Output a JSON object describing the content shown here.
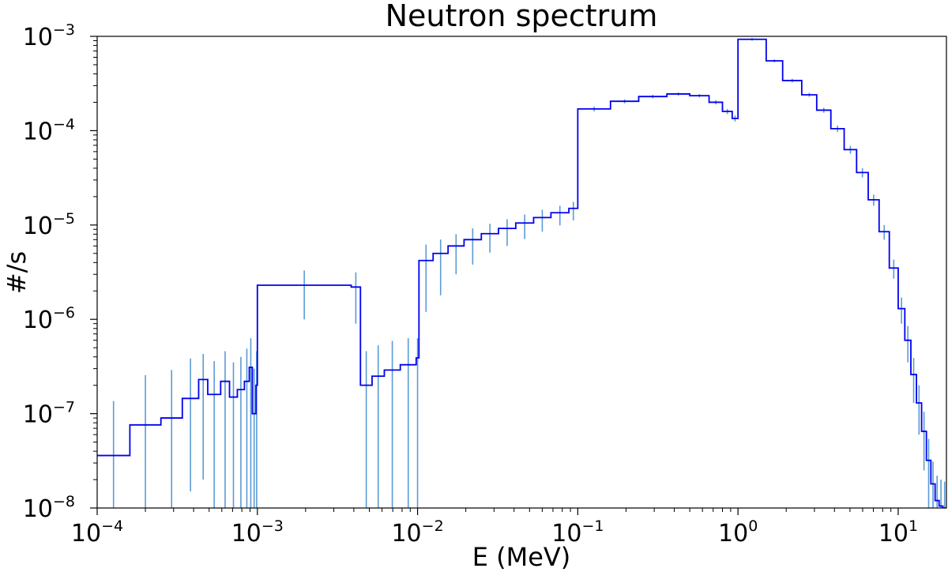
{
  "chart_data": {
    "type": "line",
    "style": "step",
    "title": "Neutron spectrum",
    "xlabel": "E (MeV)",
    "ylabel": "#/s",
    "xscale": "log",
    "yscale": "log",
    "xlim": [
      0.0001,
      20
    ],
    "ylim": [
      1e-08,
      0.001
    ],
    "grid": false,
    "x_ticks": [
      {
        "value": 0.0001,
        "base": "10",
        "exp": "−4"
      },
      {
        "value": 0.001,
        "base": "10",
        "exp": "−3"
      },
      {
        "value": 0.01,
        "base": "10",
        "exp": "−2"
      },
      {
        "value": 0.1,
        "base": "10",
        "exp": "−1"
      },
      {
        "value": 1,
        "base": "10",
        "exp": "0"
      },
      {
        "value": 10,
        "base": "10",
        "exp": "1"
      }
    ],
    "y_ticks": [
      {
        "value": 1e-08,
        "base": "10",
        "exp": "−8"
      },
      {
        "value": 1e-07,
        "base": "10",
        "exp": "−7"
      },
      {
        "value": 1e-06,
        "base": "10",
        "exp": "−6"
      },
      {
        "value": 1e-05,
        "base": "10",
        "exp": "−5"
      },
      {
        "value": 0.0001,
        "base": "10",
        "exp": "−4"
      },
      {
        "value": 0.001,
        "base": "10",
        "exp": "−3"
      }
    ],
    "colors": {
      "line": "#0000ee",
      "errorbar": "#5b9bd5",
      "axes": "#000000"
    },
    "series": [
      {
        "edges": [
          0.0001,
          0.00016,
          0.00025,
          0.00034,
          0.00043,
          0.00049,
          0.00059,
          0.00067,
          0.00075,
          0.00083,
          0.00089,
          0.00093,
          0.00098,
          0.001,
          0.00385,
          0.0044,
          0.0052,
          0.0062,
          0.0078,
          0.0098,
          0.0102,
          0.0125,
          0.0155,
          0.0195,
          0.025,
          0.032,
          0.041,
          0.053,
          0.068,
          0.088,
          0.1,
          0.16,
          0.24,
          0.36,
          0.5,
          0.66,
          0.8,
          0.92,
          1.0,
          1.5,
          1.9,
          2.5,
          3.1,
          3.8,
          4.6,
          5.5,
          6.5,
          7.6,
          8.8,
          10,
          11,
          12,
          13,
          14,
          15,
          16,
          17,
          18,
          19,
          20
        ],
        "values": [
          3.6e-08,
          7.6e-08,
          9e-08,
          1.45e-07,
          2.3e-07,
          1.6e-07,
          2.2e-07,
          1.5e-07,
          1.8e-07,
          2.2e-07,
          3.1e-07,
          1e-07,
          2e-07,
          2.3e-06,
          2.2e-06,
          2e-07,
          2.5e-07,
          2.9e-07,
          3.3e-07,
          3.9e-07,
          4.2e-06,
          5e-06,
          6e-06,
          7e-06,
          8.1e-06,
          9.2e-06,
          1.05e-05,
          1.2e-05,
          1.35e-05,
          1.5e-05,
          0.00017,
          0.000205,
          0.00023,
          0.000245,
          0.000235,
          0.0002,
          0.00016,
          0.000135,
          0.00093,
          0.00055,
          0.00034,
          0.00024,
          0.000165,
          0.000105,
          6.3e-05,
          3.6e-05,
          1.85e-05,
          8.5e-06,
          3.5e-06,
          1.3e-06,
          6e-07,
          2.6e-07,
          1.3e-07,
          6.5e-08,
          3.2e-08,
          1.8e-08,
          1.2e-08,
          1.05e-08,
          1e-08
        ],
        "errors_low": [
          3e-08,
          6.6e-08,
          8e-08,
          1.3e-07,
          2.1e-07,
          1.5e-07,
          2.1e-07,
          1.45e-07,
          1.75e-07,
          2.15e-07,
          3e-07,
          9.8e-08,
          1.95e-07,
          1.3e-06,
          1.3e-06,
          1.9e-07,
          2.4e-07,
          2.8e-07,
          3.2e-07,
          3.8e-07,
          3e-06,
          3.2e-06,
          3e-06,
          3.2e-06,
          3e-06,
          3.2e-06,
          3.4e-06,
          3.5e-06,
          3.6e-06,
          3.8e-06,
          1e-05,
          1e-05,
          1e-05,
          1e-05,
          1e-05,
          1e-05,
          1e-05,
          1e-05,
          3e-05,
          2e-05,
          1.5e-05,
          1.2e-05,
          1e-05,
          8e-06,
          6e-06,
          4e-06,
          2.5e-06,
          1.5e-06,
          8e-07,
          4e-07,
          2.5e-07,
          1.3e-07,
          7e-08,
          4e-08,
          2.2e-08,
          1.3e-08,
          1e-08,
          9.5e-09,
          9e-09
        ],
        "errors_high": [
          1e-07,
          1.8e-07,
          2e-07,
          2.4e-07,
          2e-07,
          2e-07,
          2.4e-07,
          2e-07,
          2.2e-07,
          2.7e-07,
          3.2e-07,
          2e-07,
          2.6e-07,
          1e-06,
          9.5e-07,
          2.6e-07,
          2.8e-07,
          3e-07,
          3e-07,
          2.4e-07,
          2e-06,
          2e-06,
          2e-06,
          2.2e-06,
          2.2e-06,
          2.3e-06,
          2.4e-06,
          2.5e-06,
          2.5e-06,
          2.6e-06,
          1e-05,
          1e-05,
          1e-05,
          1e-05,
          1e-05,
          1e-05,
          1e-05,
          1e-05,
          3e-05,
          2e-05,
          1.5e-05,
          1.2e-05,
          1e-05,
          8e-06,
          6e-06,
          4e-06,
          2.5e-06,
          1.5e-06,
          8e-07,
          4e-07,
          2.5e-07,
          1.3e-07,
          7e-08,
          4e-08,
          2.2e-08,
          1.3e-08,
          1e-08,
          9.5e-09,
          9e-09
        ]
      }
    ]
  }
}
